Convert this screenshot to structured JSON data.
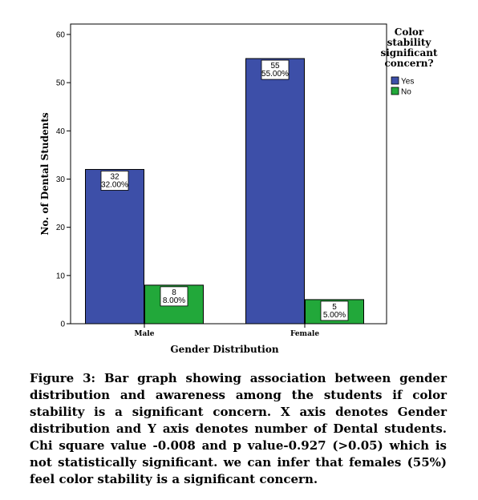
{
  "chart_data": {
    "type": "bar",
    "categories": [
      "Male",
      "Female"
    ],
    "series": [
      {
        "name": "Yes",
        "color": "#3d4fa8",
        "values": [
          32,
          55
        ],
        "labels": [
          "32\n32.00%",
          "55\n55.00%"
        ]
      },
      {
        "name": "No",
        "color": "#22a83a",
        "values": [
          8,
          5
        ],
        "labels": [
          "8\n8.00%",
          "5\n5.00%"
        ]
      }
    ],
    "xlabel": "Gender Distribution",
    "ylabel": "No. of Dental Students",
    "ylim": [
      0,
      60
    ],
    "yticks": [
      0,
      10,
      20,
      30,
      40,
      50,
      60
    ],
    "legend_title": "Color\nstability\nsignificant\nconcern?",
    "legend_position": "top-right",
    "grid": false
  },
  "caption": "Figure 3: Bar graph showing association between gender distribution and awareness among the students if color stability is a significant concern. X axis denotes Gender distribution and Y axis denotes number of Dental students. Chi square value -0.008 and p value-0.927 (>0.05) which is not statistically significant. we can infer that females (55%) feel color stability is a significant concern."
}
